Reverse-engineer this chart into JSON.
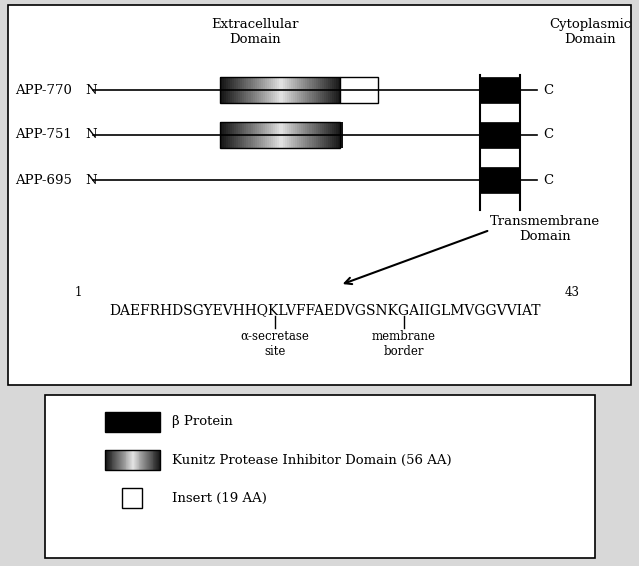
{
  "bg_color": "#d8d8d8",
  "panel_bg": "#ffffff",
  "extracellular_label": "Extracellular\nDomain",
  "cytoplasmic_label": "Cytoplasmic\nDomain",
  "transmembrane_label": "Transmembrane\nDomain",
  "app_labels": [
    "APP-770",
    "APP-751",
    "APP-695"
  ],
  "seq_text": "DAEFRHDSGYEVHHQKLVFFAEDVGSNKGAIIGLMVGGVVIAT",
  "seq_num_start": "1",
  "seq_num_end": "43",
  "alpha_label": "α-secretase\nsite",
  "membrane_label": "membrane\nborder",
  "legend_items": [
    {
      "label": "β Protein",
      "type": "black"
    },
    {
      "label": "Kunitz Protease Inhibitor Domain (56 AA)",
      "type": "kunitz"
    },
    {
      "label": "Insert (19 AA)",
      "type": "white"
    }
  ]
}
